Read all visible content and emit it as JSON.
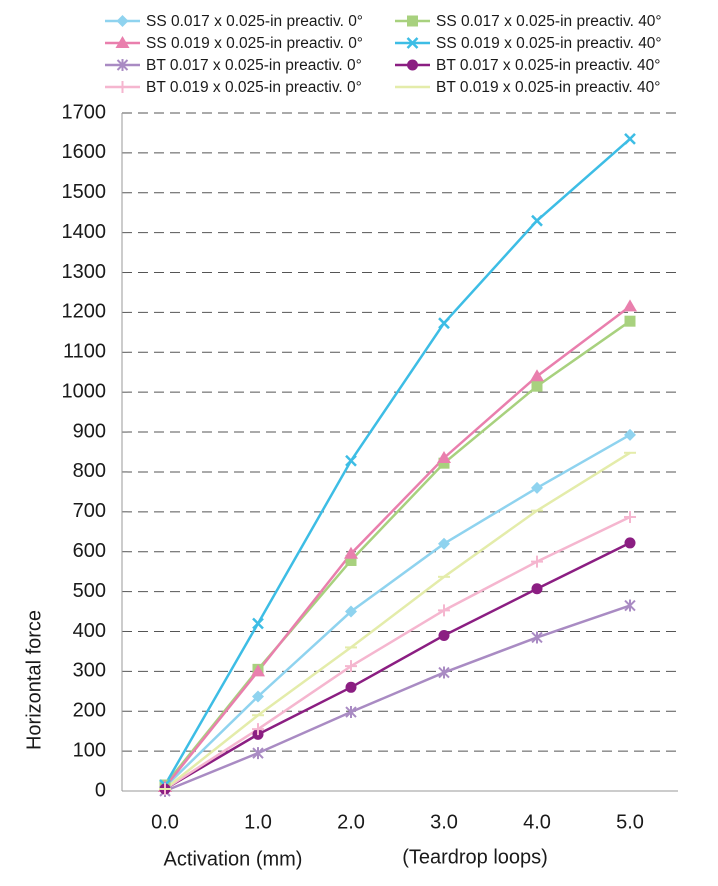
{
  "chart_data": {
    "type": "line",
    "y_label": "Horizontal force",
    "x_label": "Activation (mm)",
    "x_sublabel": "(Teardrop loops)",
    "categories": [
      "0.0",
      "1.0",
      "2.0",
      "3.0",
      "4.0",
      "5.0"
    ],
    "ylim": [
      0,
      1700
    ],
    "yticks": [
      0,
      100,
      200,
      300,
      400,
      500,
      600,
      700,
      800,
      900,
      1000,
      1100,
      1200,
      1300,
      1400,
      1500,
      1600,
      1700
    ],
    "grid": true,
    "legend": "top",
    "series": [
      {
        "name": "SS 0.017 x 0.025-in preactiv. 0°",
        "color": "#8fd3ef",
        "marker": "diamond",
        "values": [
          10,
          237,
          450,
          620,
          760,
          893
        ]
      },
      {
        "name": "SS 0.017 x 0.025-in preactiv. 40°",
        "color": "#a8d17e",
        "marker": "square",
        "values": [
          15,
          305,
          578,
          822,
          1015,
          1178
        ]
      },
      {
        "name": "SS 0.019 x 0.025-in preactiv. 0°",
        "color": "#e97fad",
        "marker": "triangle",
        "values": [
          10,
          300,
          595,
          835,
          1040,
          1215
        ]
      },
      {
        "name": "SS 0.019 x 0.025-in preactiv. 40°",
        "color": "#3dbde5",
        "marker": "x",
        "values": [
          15,
          420,
          828,
          1173,
          1430,
          1635
        ]
      },
      {
        "name": "BT 0.017 x 0.025-in preactiv. 0°",
        "color": "#a98bc3",
        "marker": "star",
        "values": [
          0,
          95,
          198,
          297,
          385,
          465
        ]
      },
      {
        "name": "BT 0.017 x 0.025-in preactiv. 40°",
        "color": "#8b1e82",
        "marker": "circle",
        "values": [
          5,
          142,
          260,
          390,
          507,
          622
        ]
      },
      {
        "name": "BT 0.019 x 0.025-in preactiv. 0°",
        "color": "#f5b6cf",
        "marker": "plus",
        "values": [
          5,
          155,
          313,
          453,
          575,
          687
        ]
      },
      {
        "name": "BT 0.019 x 0.025-in preactiv. 40°",
        "color": "#e4ecaa",
        "marker": "dash",
        "values": [
          5,
          190,
          360,
          537,
          703,
          848
        ]
      }
    ]
  }
}
